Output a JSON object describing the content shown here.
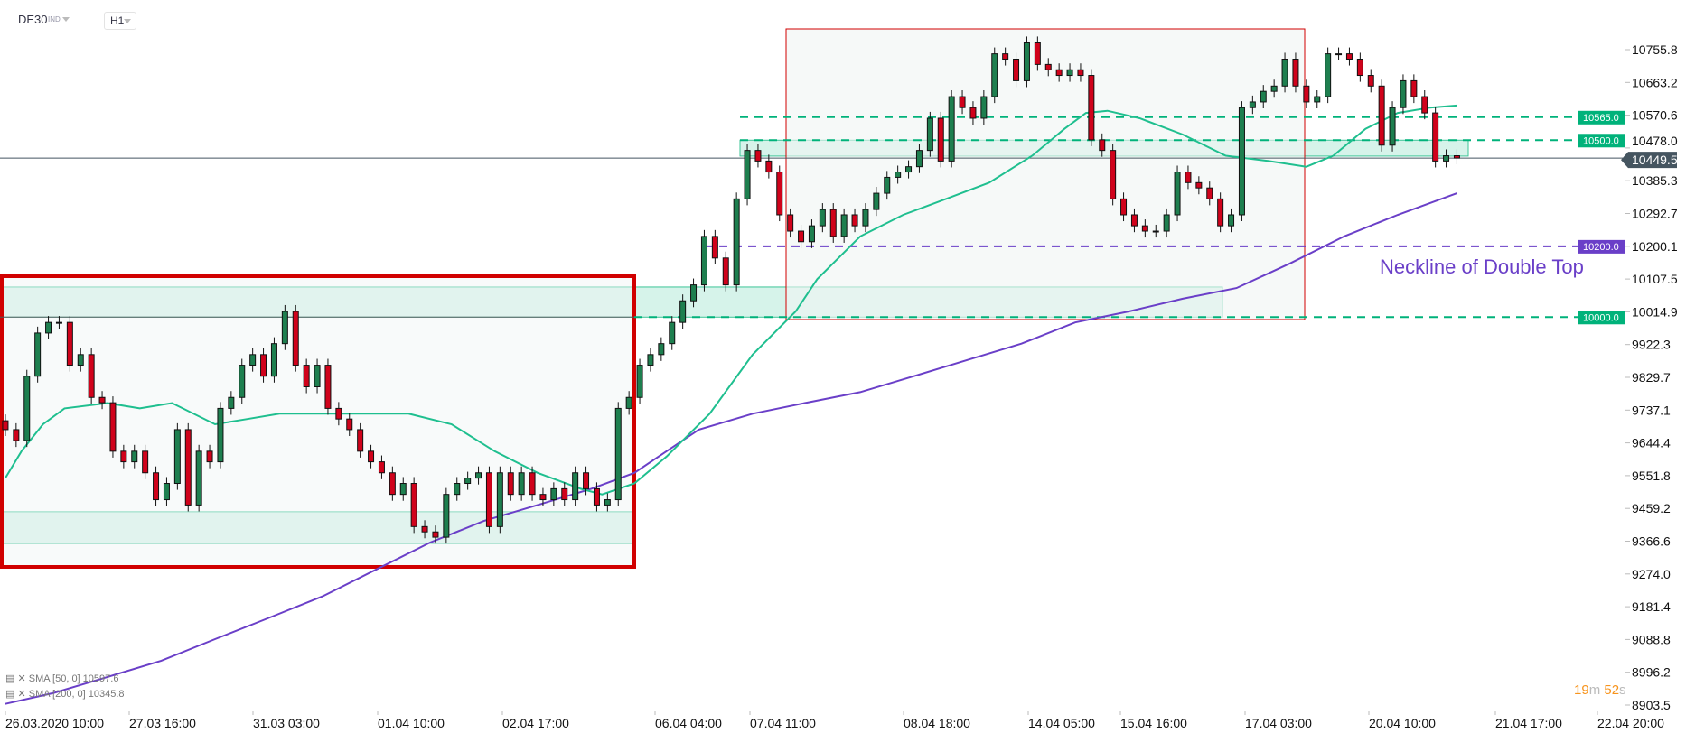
{
  "header": {
    "symbol": "DE30",
    "symbol_type": "IND",
    "timeframe": "H1"
  },
  "legend": [
    {
      "label": "SMA [50, 0] 10597.6"
    },
    {
      "label": "SMA [200, 0] 10345.8"
    }
  ],
  "countdown": {
    "minutes": "19",
    "m": "m",
    "seconds": "52",
    "s": "s"
  },
  "colors": {
    "up": "#1e7f4f",
    "down": "#d0021b",
    "sma50": "#1fbf8f",
    "sma200": "#6a3fc8",
    "zone": "#d6f3ea",
    "level_green": "#00b27a",
    "level_purple": "#6a3fc8",
    "box_red": "#d10000",
    "price_line": "#455560",
    "countdown": "#f7941d"
  },
  "chart_data": {
    "type": "candlestick",
    "symbol": "DE30",
    "interval": "H1",
    "y_ticks": [
      "10755.8",
      "10663.2",
      "10570.6",
      "10478.0",
      "10385.3",
      "10292.7",
      "10200.1",
      "10107.5",
      "10014.9",
      "9922.3",
      "9829.7",
      "9737.1",
      "9644.4",
      "9551.8",
      "9459.2",
      "9366.6",
      "9274.0",
      "9181.4",
      "9088.8",
      "8996.2",
      "8903.5"
    ],
    "x_ticks": [
      "26.03.2020  10:00",
      "27.03  16:00",
      "31.03  03:00",
      "01.04  10:00",
      "02.04  17:00",
      "06.04  04:00",
      "07.04  11:00",
      "08.04  18:00",
      "14.04  05:00",
      "15.04  16:00",
      "17.04  03:00",
      "20.04  10:00",
      "21.04  17:00",
      "22.04  20:00"
    ],
    "closes": [
      9682,
      9651,
      9833,
      9955,
      9985,
      9985,
      9864,
      9894,
      9773,
      9758,
      9621,
      9591,
      9621,
      9560,
      9484,
      9530,
      9682,
      9469,
      9621,
      9591,
      9742,
      9773,
      9864,
      9894,
      9833,
      9925,
      10016,
      9864,
      9803,
      9864,
      9742,
      9712,
      9682,
      9621,
      9591,
      9560,
      9499,
      9530,
      9408,
      9393,
      9378,
      9499,
      9530,
      9545,
      9560,
      9408,
      9560,
      9499,
      9560,
      9499,
      9484,
      9515,
      9484,
      9560,
      9515,
      9469,
      9484,
      9742,
      9773,
      9864,
      9894,
      9925,
      9985,
      10046,
      10091,
      10228,
      10167,
      10091,
      10334,
      10471,
      10441,
      10410,
      10289,
      10243,
      10213,
      10258,
      10304,
      10228,
      10289,
      10258,
      10304,
      10350,
      10395,
      10410,
      10425,
      10471,
      10562,
      10441,
      10623,
      10592,
      10562,
      10623,
      10744,
      10729,
      10668,
      10775,
      10714,
      10699,
      10683,
      10699,
      10683,
      10501,
      10471,
      10334,
      10289,
      10258,
      10243,
      10243,
      10289,
      10410,
      10380,
      10365,
      10334,
      10258,
      10289,
      10592,
      10608,
      10638,
      10653,
      10729,
      10653,
      10608,
      10623,
      10744,
      10744,
      10729,
      10683,
      10653,
      10486,
      10592,
      10668,
      10623,
      10577,
      10441,
      10456,
      10449.5
    ],
    "sma50": [
      [
        0,
        9545
      ],
      [
        1.5,
        9621
      ],
      [
        3.5,
        9697
      ],
      [
        5.5,
        9742
      ],
      [
        9.5,
        9757
      ],
      [
        12.5,
        9742
      ],
      [
        15.5,
        9757
      ],
      [
        19.5,
        9697
      ],
      [
        22.5,
        9712
      ],
      [
        25.5,
        9727
      ],
      [
        29.5,
        9727
      ],
      [
        34.5,
        9727
      ],
      [
        37.5,
        9727
      ],
      [
        41.5,
        9697
      ],
      [
        45.5,
        9621
      ],
      [
        49.5,
        9560
      ],
      [
        53.5,
        9515
      ],
      [
        55.5,
        9499
      ],
      [
        58.5,
        9530
      ],
      [
        61.5,
        9606
      ],
      [
        65.5,
        9727
      ],
      [
        69.5,
        9894
      ],
      [
        73.5,
        10016
      ],
      [
        75.5,
        10107
      ],
      [
        79.5,
        10228
      ],
      [
        83.5,
        10289
      ],
      [
        87.5,
        10334
      ],
      [
        91.5,
        10380
      ],
      [
        95.5,
        10456
      ],
      [
        98.5,
        10532
      ],
      [
        100.5,
        10577
      ],
      [
        102.5,
        10583
      ],
      [
        105.5,
        10562
      ],
      [
        109.5,
        10516
      ],
      [
        113.5,
        10456
      ],
      [
        117.5,
        10441
      ],
      [
        121,
        10425
      ],
      [
        123.5,
        10456
      ],
      [
        126.5,
        10532
      ],
      [
        129.5,
        10577
      ],
      [
        132.5,
        10592
      ],
      [
        135,
        10598
      ]
    ],
    "sma200": [
      [
        0,
        8907
      ],
      [
        4.5,
        8938
      ],
      [
        9.5,
        8983
      ],
      [
        14.5,
        9029
      ],
      [
        19.5,
        9090
      ],
      [
        24.5,
        9150
      ],
      [
        29.5,
        9211
      ],
      [
        34.5,
        9287
      ],
      [
        39.5,
        9363
      ],
      [
        44.5,
        9424
      ],
      [
        49.5,
        9469
      ],
      [
        54.5,
        9515
      ],
      [
        58.5,
        9560
      ],
      [
        61.5,
        9621
      ],
      [
        64.5,
        9682
      ],
      [
        69.5,
        9727
      ],
      [
        74.5,
        9758
      ],
      [
        79.5,
        9788
      ],
      [
        84.5,
        9833
      ],
      [
        89.5,
        9879
      ],
      [
        94.5,
        9925
      ],
      [
        99.5,
        9985
      ],
      [
        104.5,
        10016
      ],
      [
        109.5,
        10052
      ],
      [
        114.5,
        10082
      ],
      [
        119.5,
        10152
      ],
      [
        124.5,
        10228
      ],
      [
        129.5,
        10289
      ],
      [
        135,
        10350
      ]
    ],
    "levels": [
      {
        "price": 10565.0,
        "label": "10565.0",
        "color": "green"
      },
      {
        "price": 10500.0,
        "label": "10500.0",
        "color": "green"
      },
      {
        "price": 10200.0,
        "label": "10200.0",
        "color": "purple"
      },
      {
        "price": 10000.0,
        "label": "10000.0",
        "color": "green"
      }
    ],
    "zones": [
      {
        "from": 10000,
        "to": 10085
      },
      {
        "from": 9360,
        "to": 9450
      },
      {
        "from": 10455,
        "to": 10500
      }
    ],
    "current_price": "10449.5",
    "annotation": "Neckline of Double Top"
  }
}
